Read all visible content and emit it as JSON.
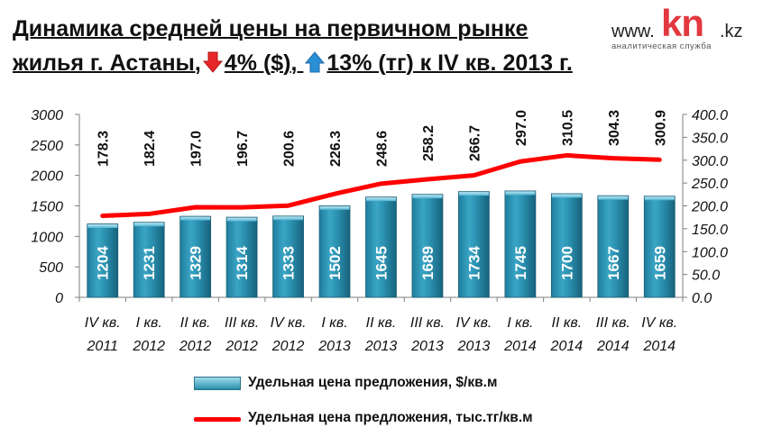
{
  "title": {
    "line1": "Динамика средней цены на первичном рынке",
    "line2_pre": "жилья г. Астаны,",
    "line2_mid": "4% ($),",
    "line2_post": "13% (тг) к IV кв. 2013 г.",
    "down_arrow_icon": "down-arrow-icon",
    "up_arrow_icon": "up-arrow-icon",
    "down_color": "#e8262a",
    "up_color": "#2b8fd6"
  },
  "logo": {
    "www": "www.",
    "kn": "kn",
    "kz": ".kz",
    "subtitle": "аналитическая служба"
  },
  "chart_data": {
    "type": "bar",
    "categories": [
      [
        "IV кв.",
        "2011"
      ],
      [
        "I кв.",
        "2012"
      ],
      [
        "II кв.",
        "2012"
      ],
      [
        "III кв.",
        "2012"
      ],
      [
        "IV кв.",
        "2012"
      ],
      [
        "I кв.",
        "2013"
      ],
      [
        "II кв.",
        "2013"
      ],
      [
        "III кв.",
        "2013"
      ],
      [
        "IV кв.",
        "2013"
      ],
      [
        "I кв.",
        "2014"
      ],
      [
        "II кв.",
        "2014"
      ],
      [
        "III кв.",
        "2014"
      ],
      [
        "IV кв.",
        "2014"
      ]
    ],
    "series": [
      {
        "name": "Удельная цена предложения, $/кв.м",
        "type": "bar",
        "axis": "left",
        "values": [
          1204,
          1231,
          1329,
          1314,
          1333,
          1502,
          1645,
          1689,
          1734,
          1745,
          1700,
          1667,
          1659
        ],
        "labels": [
          "1204",
          "1231",
          "1329",
          "1314",
          "1333",
          "1502",
          "1645",
          "1689",
          "1734",
          "1745",
          "1700",
          "1667",
          "1659"
        ],
        "color": "#2a8fae"
      },
      {
        "name": "Удельная цена предложения, тыс.тг/кв.м",
        "type": "line",
        "axis": "right",
        "values": [
          178.3,
          182.4,
          197.0,
          196.7,
          200.6,
          226.3,
          248.6,
          258.2,
          266.7,
          297.0,
          310.5,
          304.3,
          300.9
        ],
        "labels": [
          "178.3",
          "182.4",
          "197.0",
          "196.7",
          "200.6",
          "226.3",
          "248.6",
          "258.2",
          "266.7",
          "297.0",
          "310.5",
          "304.3",
          "300.9"
        ],
        "color": "#ff0000"
      }
    ],
    "y_left": {
      "min": 0,
      "max": 3000,
      "ticks": [
        "0",
        "500",
        "1000",
        "1500",
        "2000",
        "2500",
        "3000"
      ]
    },
    "y_right": {
      "min": 0,
      "max": 400,
      "ticks": [
        "0.0",
        "50.0",
        "100.0",
        "150.0",
        "200.0",
        "250.0",
        "300.0",
        "350.0",
        "400.0"
      ]
    },
    "grid": false,
    "legend_position": "bottom"
  }
}
